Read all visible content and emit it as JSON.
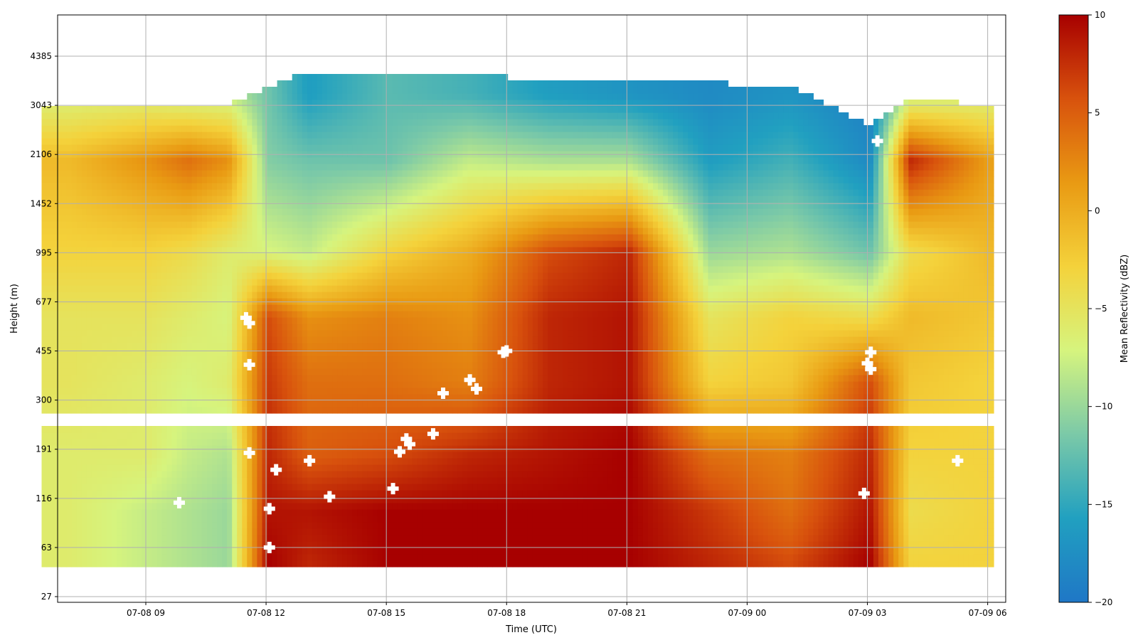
{
  "chart_data": {
    "type": "heatmap",
    "title": "",
    "xlabel": "Time (UTC)",
    "ylabel": "Height (m)",
    "grid": true,
    "x_ticks": [
      "07-08 09",
      "07-08 12",
      "07-08 15",
      "07-08 18",
      "07-08 21",
      "07-09 00",
      "07-09 03",
      "07-09 06"
    ],
    "x_tick_hours": [
      9,
      12,
      15,
      18,
      21,
      24,
      27,
      30
    ],
    "xlim_hours": [
      6.8,
      30.45
    ],
    "y_ticks": [
      "27",
      "63",
      "116",
      "191",
      "300",
      "455",
      "677",
      "995",
      "1452",
      "2106",
      "3043",
      "4385"
    ],
    "y_tick_values": [
      27,
      63,
      116,
      191,
      300,
      455,
      677,
      995,
      1452,
      2106,
      3043,
      4385
    ],
    "colorbar": {
      "label": "Mean Reflectivity (dBZ)",
      "min": -20,
      "max": 10,
      "ticks": [
        "10",
        "5",
        "0",
        "−5",
        "−10",
        "−15",
        "−20"
      ],
      "tick_values": [
        10,
        5,
        0,
        -5,
        -10,
        -15,
        -20
      ],
      "colors": [
        "#1f77c6",
        "#21a0c0",
        "#7bc9a8",
        "#d6f47e",
        "#f4d23b",
        "#e99a13",
        "#d8520d",
        "#a70000"
      ]
    },
    "data_gap_height_range_m": [
      236,
      262
    ],
    "profiles": [
      {
        "time": "07-08 07",
        "top_m": 3043,
        "dbz": [
          -6,
          -6,
          -6,
          -5,
          -5,
          -3,
          -1,
          -7
        ]
      },
      {
        "time": "07-08 09",
        "top_m": 3043,
        "dbz": [
          -8,
          -8,
          -6,
          -6,
          -5,
          -3,
          2,
          -7
        ]
      },
      {
        "time": "07-08 10",
        "top_m": 3043,
        "dbz": [
          -9,
          -9,
          -8,
          -7,
          -6,
          -4,
          4,
          -8
        ]
      },
      {
        "time": "07-08 11",
        "top_m": 3043,
        "dbz": [
          -10,
          -10,
          -9,
          -6,
          -7,
          -6,
          2,
          -8
        ]
      },
      {
        "time": "07-08 12",
        "top_m": 3500,
        "dbz": [
          10,
          9,
          8,
          7,
          6,
          -7,
          -11,
          -12
        ]
      },
      {
        "time": "07-08 13",
        "top_m": 3900,
        "dbz": [
          8,
          9,
          5,
          4,
          2,
          -8,
          -12,
          -16
        ]
      },
      {
        "time": "07-08 15",
        "top_m": 3800,
        "dbz": [
          10,
          10,
          6,
          4,
          3,
          -3,
          -12,
          -13
        ]
      },
      {
        "time": "07-08 17",
        "top_m": 3800,
        "dbz": [
          10,
          10,
          8,
          3,
          2,
          0,
          -8,
          -14
        ]
      },
      {
        "time": "07-08 19",
        "top_m": 3700,
        "dbz": [
          10,
          10,
          9,
          8,
          8,
          6,
          -9,
          -16
        ]
      },
      {
        "time": "07-08 21",
        "top_m": 3700,
        "dbz": [
          10,
          10,
          10,
          9,
          9,
          8,
          -9,
          -17
        ]
      },
      {
        "time": "07-08 23",
        "top_m": 3600,
        "dbz": [
          8,
          7,
          4,
          -3,
          -5,
          -10,
          -16,
          -18
        ]
      },
      {
        "time": "07-09 01",
        "top_m": 3500,
        "dbz": [
          6,
          4,
          3,
          -2,
          -3,
          -9,
          -14,
          -17
        ]
      },
      {
        "time": "07-09 03",
        "top_m": 2600,
        "dbz": [
          10,
          9,
          8,
          6,
          -4,
          -12,
          -18,
          -19
        ]
      },
      {
        "time": "07-09 04",
        "top_m": 3200,
        "dbz": [
          -3,
          -4,
          -3,
          -2,
          -1,
          -4,
          8,
          -8
        ]
      },
      {
        "time": "07-09 06",
        "top_m": 3043,
        "dbz": [
          -3,
          -3,
          -3,
          -3,
          -2,
          -1,
          1,
          -7
        ]
      }
    ],
    "profile_heights_m": [
      50,
      100,
      180,
      350,
      600,
      1000,
      2000,
      3300
    ],
    "markers": [
      {
        "time": "07-08 09:50",
        "height_m": 110
      },
      {
        "time": "07-08 11:30",
        "height_m": 595
      },
      {
        "time": "07-08 11:35",
        "height_m": 570
      },
      {
        "time": "07-08 11:35",
        "height_m": 405
      },
      {
        "time": "07-08 11:35",
        "height_m": 184
      },
      {
        "time": "07-08 12:05",
        "height_m": 102
      },
      {
        "time": "07-08 12:05",
        "height_m": 63
      },
      {
        "time": "07-08 12:15",
        "height_m": 155
      },
      {
        "time": "07-08 13:05",
        "height_m": 170
      },
      {
        "time": "07-08 13:35",
        "height_m": 118
      },
      {
        "time": "07-08 15:10",
        "height_m": 128
      },
      {
        "time": "07-08 15:20",
        "height_m": 186
      },
      {
        "time": "07-08 15:30",
        "height_m": 210
      },
      {
        "time": "07-08 15:35",
        "height_m": 200
      },
      {
        "time": "07-08 16:10",
        "height_m": 220
      },
      {
        "time": "07-08 16:25",
        "height_m": 318
      },
      {
        "time": "07-08 17:05",
        "height_m": 356
      },
      {
        "time": "07-08 17:15",
        "height_m": 330
      },
      {
        "time": "07-08 17:55",
        "height_m": 450
      },
      {
        "time": "07-08 18:00",
        "height_m": 455
      },
      {
        "time": "07-09 02:55",
        "height_m": 122
      },
      {
        "time": "07-09 03:00",
        "height_m": 410
      },
      {
        "time": "07-09 03:05",
        "height_m": 450
      },
      {
        "time": "07-09 03:05",
        "height_m": 390
      },
      {
        "time": "07-09 03:15",
        "height_m": 2330
      },
      {
        "time": "07-09 05:15",
        "height_m": 170
      }
    ]
  }
}
